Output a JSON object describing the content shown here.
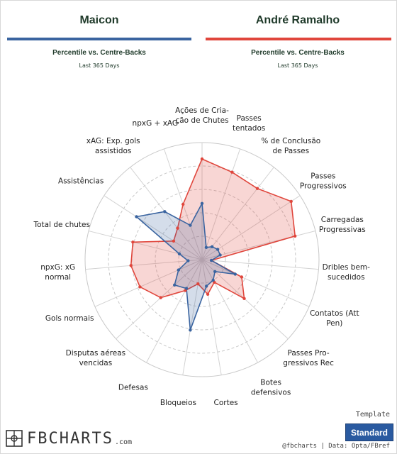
{
  "players": [
    {
      "name": "Maicon",
      "color": "#3a64a0",
      "subtitle": "Percentile vs. Centre-Backs",
      "period": "Last 365 Days"
    },
    {
      "name": "André Ramalho",
      "color": "#e0463c",
      "subtitle": "Percentile vs. Centre-Backs",
      "period": "Last 365 Days"
    }
  ],
  "chart_data": {
    "type": "radar",
    "range": [
      0,
      100
    ],
    "categories": [
      [
        "Ações de Cria-",
        "ção de Chutes"
      ],
      [
        "Passes",
        "tentados"
      ],
      [
        "% de Conclusão",
        "de Passes"
      ],
      [
        "Passes",
        "Progressivos"
      ],
      [
        "Carregadas",
        "Progressivas"
      ],
      [
        "Dribles bem-",
        "sucedidos"
      ],
      [
        "Contatos (Att",
        "Pen)"
      ],
      [
        "Passes Pro-",
        "gressivos Rec"
      ],
      [
        "Botes",
        "defensivos"
      ],
      [
        "Cortes"
      ],
      [
        "Bloqueios"
      ],
      [
        "Defesas"
      ],
      [
        "Disputas aéreas",
        "vencidas"
      ],
      [
        "Gols normais"
      ],
      [
        "npxG: xG",
        "normal"
      ],
      [
        "Total de chutes"
      ],
      [
        "Assistências"
      ],
      [
        "xAG: Exp. gols",
        "assistidos"
      ],
      [
        "npxG + xAG"
      ]
    ],
    "series": [
      {
        "name": "Maicon",
        "values": [
          48,
          11,
          14,
          16,
          16,
          8,
          31,
          15,
          20,
          23,
          61,
          28,
          32,
          22,
          12,
          20,
          67,
          52,
          31
        ]
      },
      {
        "name": "André Ramalho",
        "values": [
          86,
          79,
          77,
          91,
          82,
          8,
          37,
          49,
          22,
          30,
          21,
          30,
          48,
          58,
          61,
          61,
          29,
          34,
          50
        ]
      }
    ]
  },
  "footer": {
    "template_label": "Template",
    "template_value": "Standard",
    "logo": "FBCHARTS",
    "logo_suffix": ".com",
    "credits": "@fbcharts | Data: Opta/FBref"
  }
}
